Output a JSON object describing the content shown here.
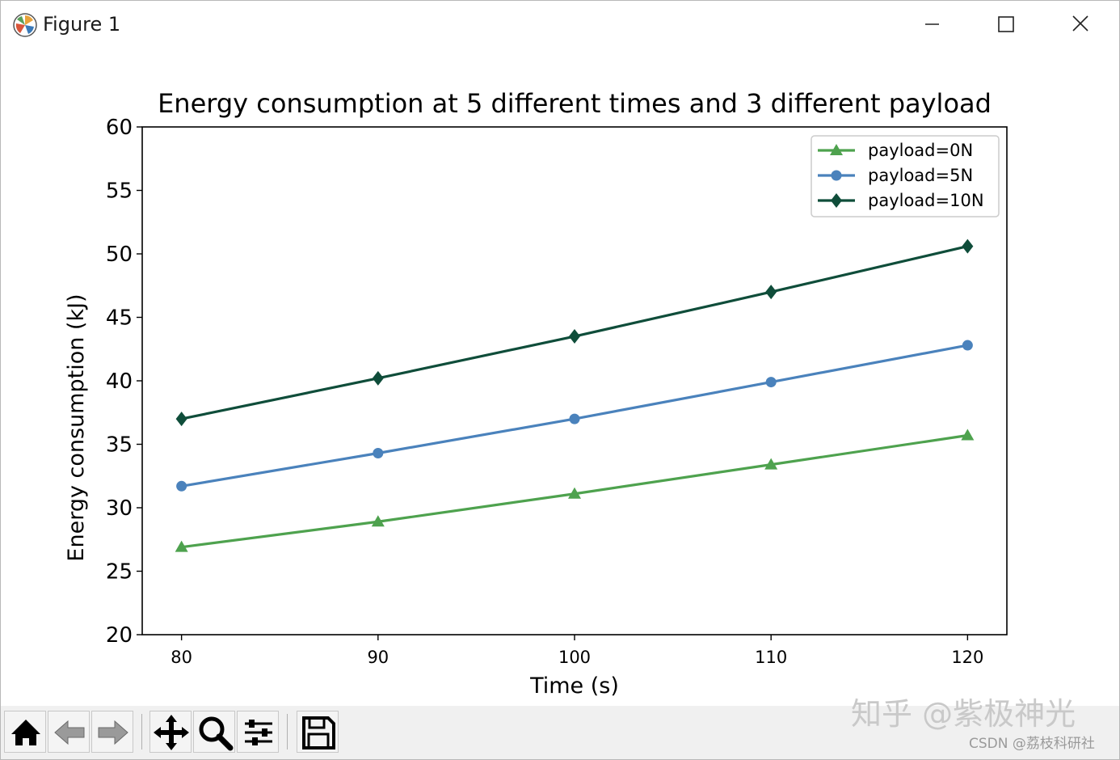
{
  "window": {
    "title": "Figure 1",
    "icons": {
      "app": "matplotlib-icon",
      "minimize": "minimize-icon",
      "maximize": "maximize-icon",
      "close": "close-icon"
    }
  },
  "toolbar": {
    "tools": [
      {
        "key": "home",
        "icon": "home-icon"
      },
      {
        "key": "back",
        "icon": "back-arrow-icon"
      },
      {
        "key": "forward",
        "icon": "forward-arrow-icon"
      },
      {
        "key": "pan",
        "icon": "move-icon"
      },
      {
        "key": "zoom",
        "icon": "magnifier-icon"
      },
      {
        "key": "configure",
        "icon": "sliders-icon"
      },
      {
        "key": "save",
        "icon": "floppy-disk-icon"
      }
    ]
  },
  "watermark": {
    "text": "知乎 @紫极神光",
    "credit": "CSDN @荔枝科研社"
  },
  "chart_data": {
    "type": "line",
    "title": "Energy consumption at 5 different times and 3 different payload",
    "xlabel": "Time (s)",
    "ylabel": "Energy consumption (kJ)",
    "x": [
      80,
      90,
      100,
      110,
      120
    ],
    "xticks": [
      80,
      90,
      100,
      110,
      120
    ],
    "yticks": [
      20,
      25,
      30,
      35,
      40,
      45,
      50,
      55,
      60
    ],
    "xlim": [
      78,
      122
    ],
    "ylim": [
      20,
      60
    ],
    "grid": false,
    "legend_position": "top-right",
    "series": [
      {
        "name": "payload=0N",
        "values": [
          26.9,
          28.9,
          31.1,
          33.4,
          35.7
        ],
        "color": "#4ea24e",
        "marker": "triangle"
      },
      {
        "name": "payload=5N",
        "values": [
          31.7,
          34.3,
          37.0,
          39.9,
          42.8
        ],
        "color": "#4a82bc",
        "marker": "circle"
      },
      {
        "name": "payload=10N",
        "values": [
          37.0,
          40.2,
          43.5,
          47.0,
          50.6
        ],
        "color": "#0f4d3a",
        "marker": "diamond"
      }
    ]
  }
}
